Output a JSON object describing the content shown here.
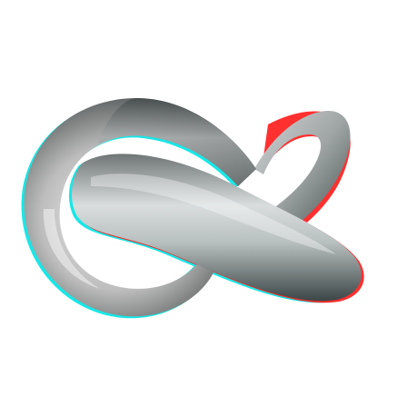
{
  "image": {
    "subject": "trefoil-knot",
    "style": "anaglyph-3d",
    "background_color": "#ffffff",
    "tube_light_color": "#f2f2f2",
    "tube_mid_color": "#9a9a9a",
    "tube_dark_color": "#2f3b3b",
    "anaglyph_left_color": "#ff0000",
    "anaglyph_right_color": "#00ffff"
  }
}
